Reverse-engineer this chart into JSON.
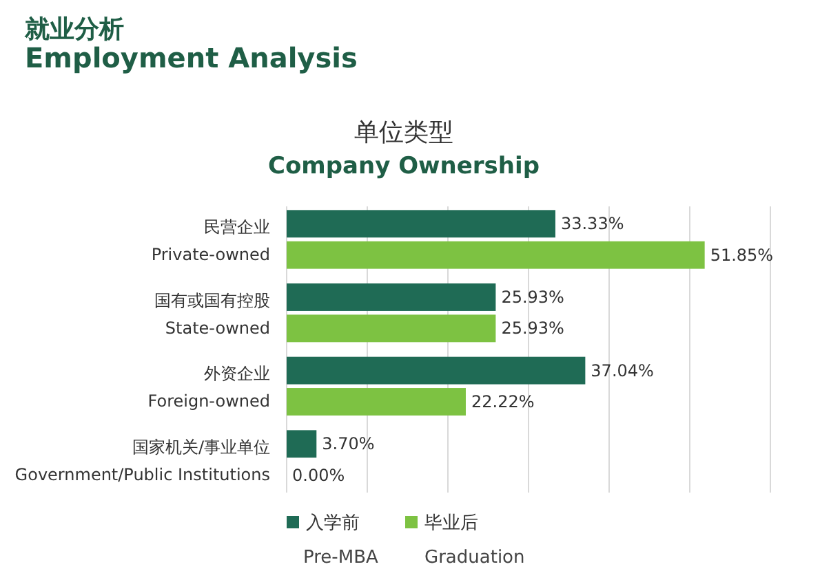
{
  "chart_data": {
    "type": "bar",
    "orientation": "horizontal",
    "title": "就业分析\nEmployment Analysis",
    "subtitle": "单位类型\nCompany Ownership",
    "categories": [
      "民营企业\nPrivate-owned",
      "国有或国有控股\nState-owned",
      "外资企业\nForeign-owned",
      "国家机关/事业单位\nGovernment/Public Institutions"
    ],
    "series": [
      {
        "name": "入学前\nPre-MBA",
        "color": "#1f6b55",
        "values": [
          33.33,
          25.93,
          37.04,
          3.7
        ],
        "value_labels": [
          "33.33%",
          "25.93%",
          "37.04%",
          "3.70%"
        ]
      },
      {
        "name": "毕业后\nGraduation",
        "color": "#7dc242",
        "values": [
          51.85,
          25.93,
          22.22,
          0.0
        ],
        "value_labels": [
          "51.85%",
          "25.93%",
          "22.22%",
          "0.00%"
        ]
      }
    ],
    "xlim": [
      0,
      60
    ],
    "xticks": [
      {
        "value": 0,
        "label": null
      },
      {
        "value": 10,
        "label": null
      },
      {
        "value": 20,
        "label": null
      },
      {
        "value": 30,
        "label": null
      },
      {
        "value": 40,
        "label": null
      },
      {
        "value": 50,
        "label": null
      },
      {
        "value": 60,
        "label": null
      }
    ],
    "grid": "x",
    "legend": "bottom",
    "tick_labels": "y"
  }
}
